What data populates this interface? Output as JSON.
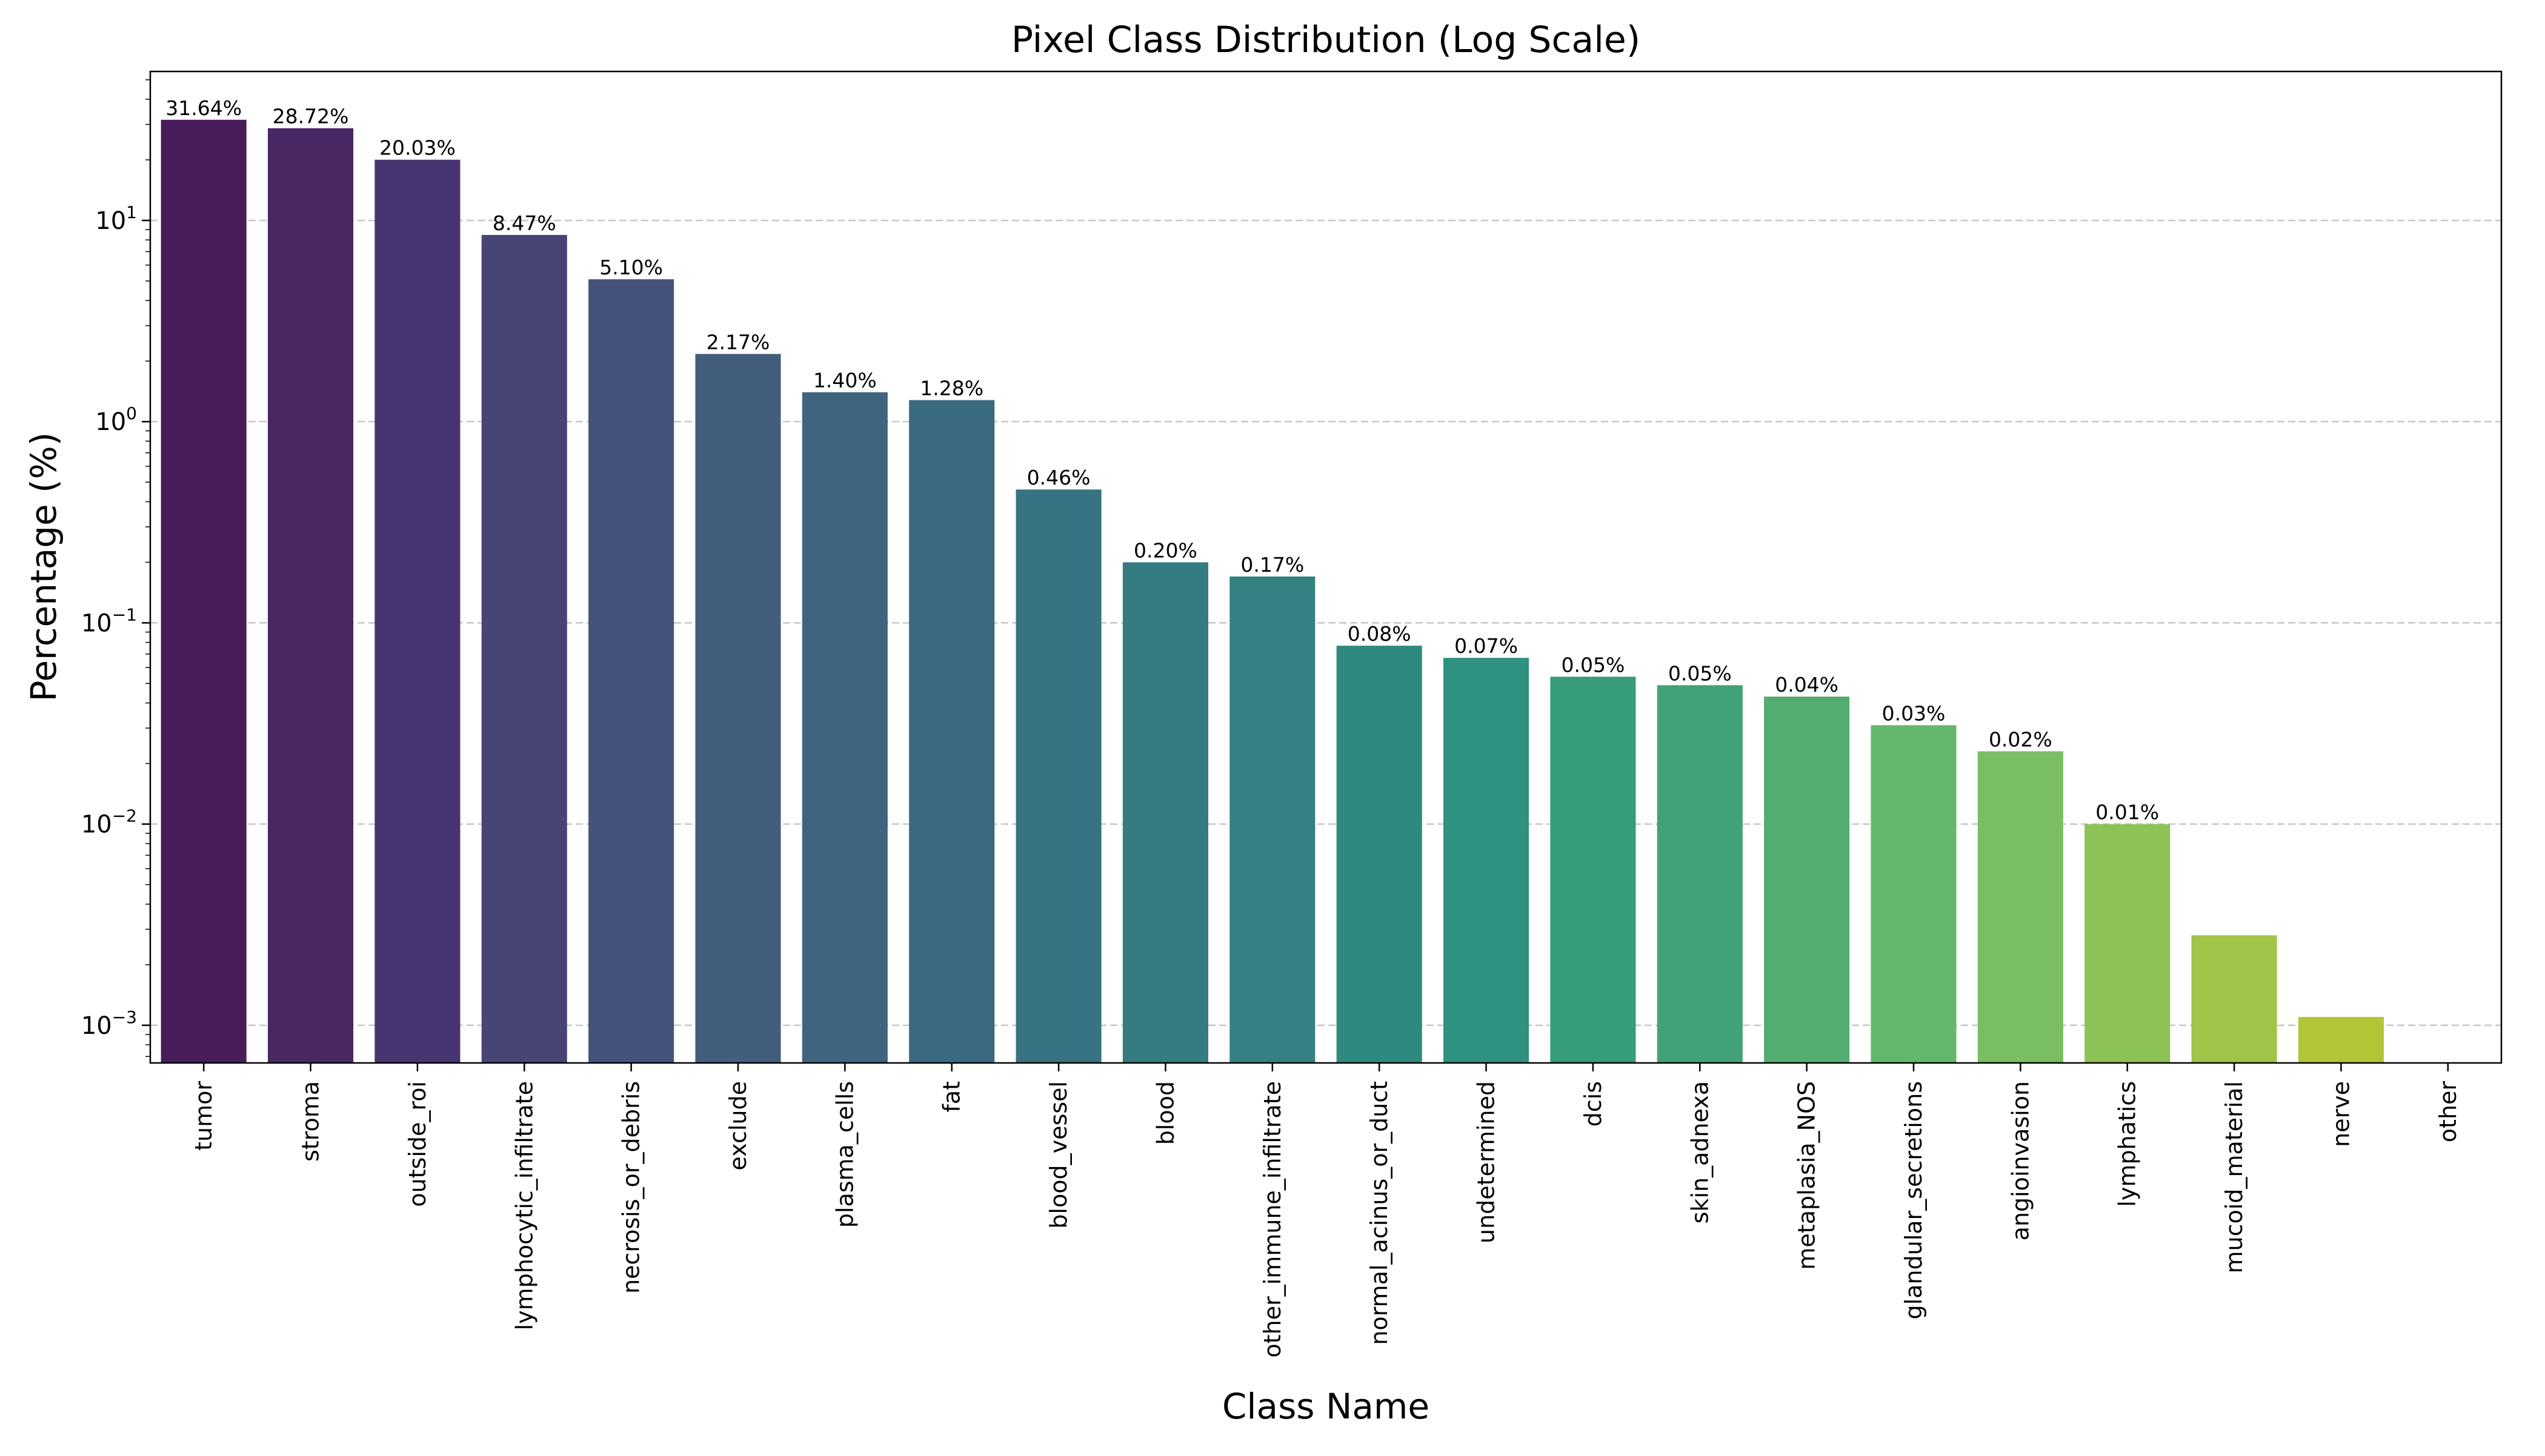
{
  "chart_data": {
    "type": "bar",
    "title": "Pixel Class Distribution (Log Scale)",
    "xlabel": "Class Name",
    "ylabel": "Percentage (%)",
    "yscale": "log",
    "ylim": [
      0.00065,
      55
    ],
    "grid": {
      "y": true,
      "x": false,
      "style": "dashed"
    },
    "legend": null,
    "categories": [
      "tumor",
      "stroma",
      "outside_roi",
      "lymphocytic_infiltrate",
      "necrosis_or_debris",
      "exclude",
      "plasma_cells",
      "fat",
      "blood_vessel",
      "blood",
      "other_immune_infiltrate",
      "normal_acinus_or_duct",
      "undetermined",
      "dcis",
      "skin_adnexa",
      "metaplasia_NOS",
      "glandular_secretions",
      "angioinvasion",
      "lymphatics",
      "mucoid_material",
      "nerve",
      "other"
    ],
    "values": [
      31.64,
      28.72,
      20.03,
      8.47,
      5.1,
      2.17,
      1.4,
      1.28,
      0.46,
      0.2,
      0.17,
      0.077,
      0.067,
      0.054,
      0.049,
      0.043,
      0.031,
      0.023,
      0.01,
      0.0028,
      0.0011,
      0.0
    ],
    "data_labels": [
      "31.64%",
      "28.72%",
      "20.03%",
      "8.47%",
      "5.10%",
      "2.17%",
      "1.40%",
      "1.28%",
      "0.46%",
      "0.20%",
      "0.17%",
      "0.08%",
      "0.07%",
      "0.05%",
      "0.05%",
      "0.04%",
      "0.03%",
      "0.02%",
      "0.01%",
      "",
      "",
      ""
    ],
    "yticks": [
      {
        "value": 0.001,
        "base": "10",
        "exp": "−3"
      },
      {
        "value": 0.01,
        "base": "10",
        "exp": "−2"
      },
      {
        "value": 0.1,
        "base": "10",
        "exp": "−1"
      },
      {
        "value": 1,
        "base": "10",
        "exp": "0"
      },
      {
        "value": 10,
        "base": "10",
        "exp": "1"
      }
    ],
    "colors": [
      "#481c5a",
      "#482763",
      "#463570",
      "#474476",
      "#45527b",
      "#435e7c",
      "#3f6480",
      "#3a6a81",
      "#377382",
      "#357b82",
      "#338181",
      "#2e8a7e",
      "#2f917f",
      "#379c7b",
      "#41a277",
      "#53ad70",
      "#64b86b",
      "#79be62",
      "#8dc256",
      "#a0c448",
      "#b2c536",
      "#c7cf2a"
    ]
  }
}
